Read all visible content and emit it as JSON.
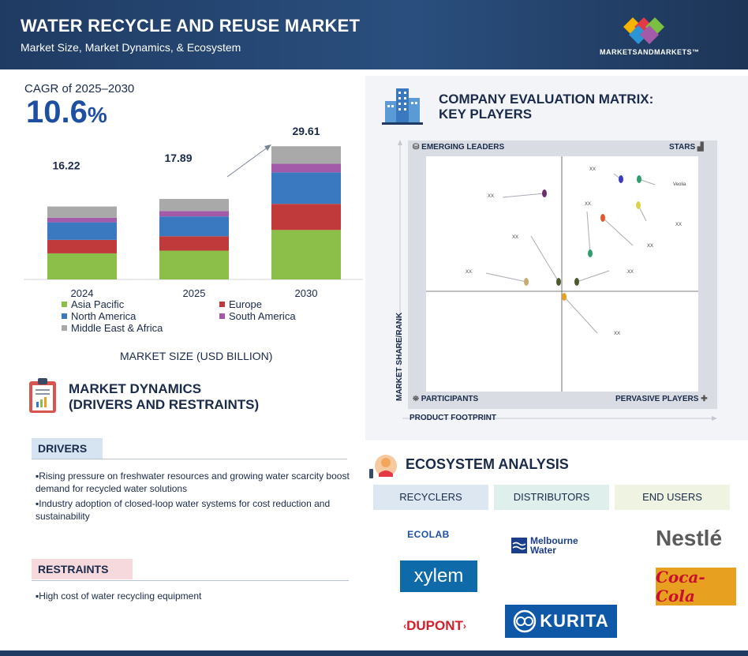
{
  "header": {
    "title": "WATER RECYCLE AND REUSE MARKET",
    "subtitle": "Market Size, Market Dynamics, & Ecosystem",
    "brand": "MARKETSANDMARKETS™"
  },
  "market_size": {
    "cagr_label": "CAGR of 2025–2030",
    "cagr_value": "10.6",
    "cagr_unit": "%",
    "caption": "MARKET SIZE (USD BILLION)"
  },
  "chart_data": {
    "type": "bar",
    "stacked": true,
    "categories": [
      "2024",
      "2025",
      "2030"
    ],
    "totals": [
      16.22,
      17.89,
      29.61
    ],
    "total_labels": [
      "16.22",
      "17.89",
      "29.61"
    ],
    "series": [
      {
        "name": "Asia Pacific",
        "color": "#8bbf4a",
        "values": [
          5.8,
          6.4,
          11.0
        ]
      },
      {
        "name": "Europe",
        "color": "#c0393b",
        "values": [
          3.0,
          3.2,
          5.8
        ]
      },
      {
        "name": "North America",
        "color": "#3a78c0",
        "values": [
          3.9,
          4.4,
          7.0
        ]
      },
      {
        "name": "South America",
        "color": "#a35aa8",
        "values": [
          1.0,
          1.2,
          1.9
        ]
      },
      {
        "name": "Middle East & Africa",
        "color": "#a9a9a9",
        "values": [
          2.52,
          2.69,
          3.91
        ]
      }
    ],
    "legend_position": "bottom",
    "grid": false
  },
  "dynamics": {
    "title_line1": "MARKET DYNAMICS",
    "title_line2": "(DRIVERS AND RESTRAINTS)",
    "drivers_label": "DRIVERS",
    "drivers": [
      "Rising pressure on freshwater resources and growing water scarcity boost demand for recycled water solutions",
      "Industry adoption of closed-loop water systems for cost reduction and sustainability"
    ],
    "restraints_label": "RESTRAINTS",
    "restraints": [
      "High cost of water recycling equipment"
    ]
  },
  "matrix": {
    "title_line1": "COMPANY EVALUATION MATRIX:",
    "title_line2": "KEY PLAYERS",
    "quadrants": {
      "top_left": "EMERGING LEADERS",
      "top_right": "STARS",
      "bottom_left": "PARTICIPANTS",
      "bottom_right": "PERVASIVE PLAYERS"
    },
    "x_axis": "PRODUCT FOOTPRINT",
    "y_axis": "MARKET SHARE/RANK",
    "points": [
      {
        "label": "XX",
        "color": "#6b2f6b"
      },
      {
        "label": "XX",
        "color": "#3b3bc4"
      },
      {
        "label": "Veolia",
        "color": "#2f9e6f"
      },
      {
        "label": "XX",
        "color": "#e0d24a"
      },
      {
        "label": "XX",
        "color": "#e6562d"
      },
      {
        "label": "XX",
        "color": "#2f9e6f"
      },
      {
        "label": "XX",
        "color": "#4a5a2a"
      },
      {
        "label": "XX",
        "color": "#c9a872"
      },
      {
        "label": "XX",
        "color": "#4a5a2a"
      },
      {
        "label": "XX",
        "color": "#e8a020"
      }
    ]
  },
  "ecosystem": {
    "title": "ECOSYSTEM ANALYSIS",
    "columns": [
      "RECYCLERS",
      "DISTRIBUTORS",
      "END USERS"
    ],
    "recyclers": [
      "ECOLAB",
      "xylem",
      "DUPONT"
    ],
    "distributors": [
      "Melbourne",
      "Water",
      "KURITA"
    ],
    "end_users": [
      "Nestlé",
      "Coca-Cola"
    ]
  }
}
